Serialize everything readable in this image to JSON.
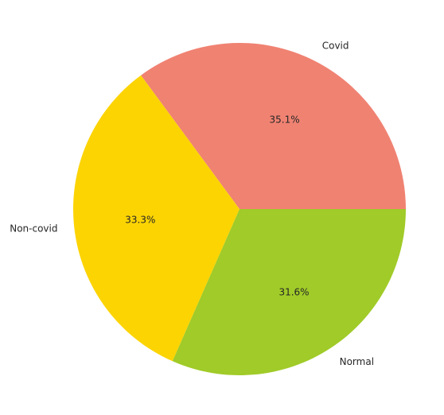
{
  "chart_data": {
    "type": "pie",
    "title": "",
    "start_angle_deg": 0,
    "direction": "counterclockwise",
    "slices": [
      {
        "label": "Covid",
        "percent_label": "35.1%",
        "value": 35.1,
        "color": "#f08272"
      },
      {
        "label": "Non-covid",
        "percent_label": "33.3%",
        "value": 33.3,
        "color": "#fcd402"
      },
      {
        "label": "Normal",
        "percent_label": "31.6%",
        "value": 31.6,
        "color": "#a0cb28"
      }
    ]
  }
}
